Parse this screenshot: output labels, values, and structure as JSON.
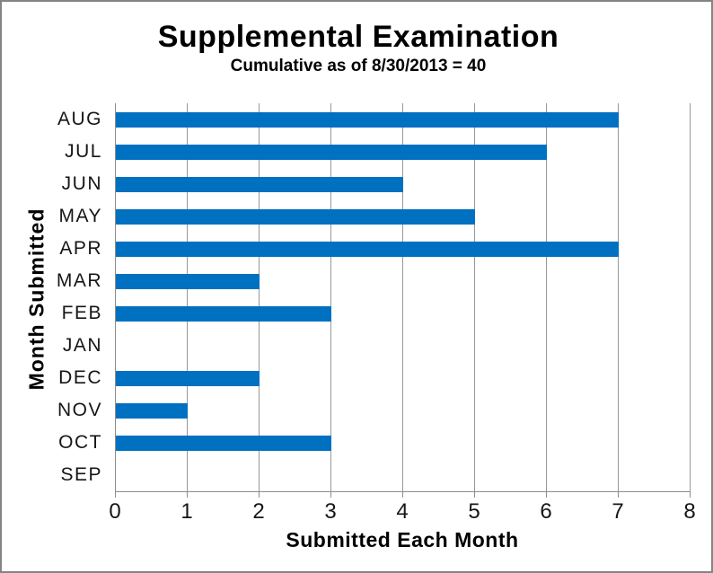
{
  "title": "Supplemental Examination",
  "subtitle": "Cumulative as of 8/30/2013 = 40",
  "colors": {
    "bar": "#0070C0",
    "gridline": "#989898",
    "axis": "#8C8C8C",
    "frame_border": "#848484",
    "text": "#000000"
  },
  "chart_data": {
    "type": "bar",
    "orientation": "horizontal",
    "title": "Supplemental Examination",
    "subtitle": "Cumulative as of 8/30/2013 = 40",
    "cumulative_total": 40,
    "categories": [
      "AUG",
      "JUL",
      "JUN",
      "MAY",
      "APR",
      "MAR",
      "FEB",
      "JAN",
      "DEC",
      "NOV",
      "OCT",
      "SEP"
    ],
    "values": [
      7,
      6,
      4,
      5,
      7,
      2,
      3,
      0,
      2,
      1,
      3,
      0
    ],
    "xlabel": "Submitted Each Month",
    "ylabel": "Month Submitted",
    "xlim": [
      0,
      8
    ],
    "xticks": [
      0,
      1,
      2,
      3,
      4,
      5,
      6,
      7,
      8
    ],
    "grid": true,
    "legend": false
  }
}
